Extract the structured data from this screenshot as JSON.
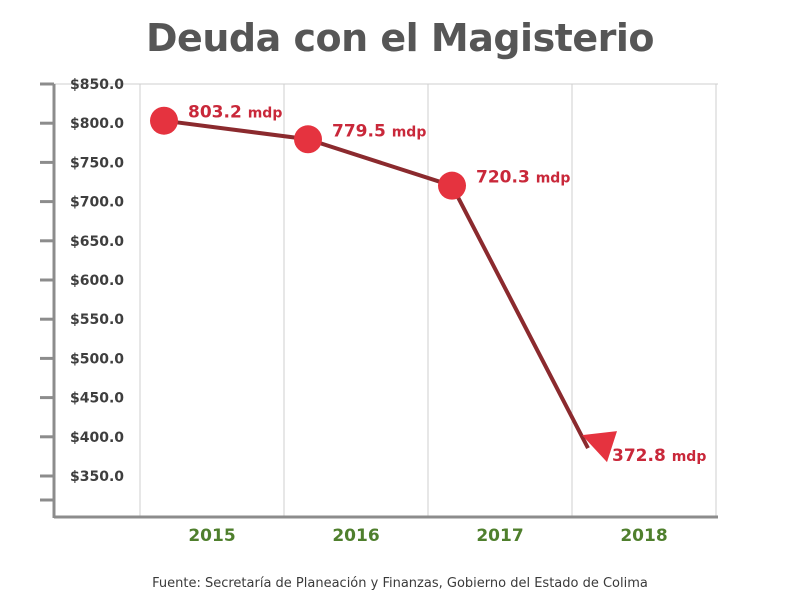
{
  "title": "Deuda con el Magisterio",
  "source": "Fuente: Secretaría de Planeación y Finanzas, Gobierno del Estado de Colima",
  "colors": {
    "line": "#8b2a2e",
    "marker": "#e5333f",
    "data_label": "#c9283a",
    "category_label": "#4f7f2d",
    "axis": "#8c8c8c",
    "grid": "#cfcfcf",
    "tick_text": "#3e3e3e"
  },
  "chart_data": {
    "type": "line",
    "categories": [
      "2015",
      "2016",
      "2017",
      "2018"
    ],
    "values": [
      803.2,
      779.5,
      720.3,
      372.8
    ],
    "data_labels": [
      {
        "value": "803.2",
        "unit": "mdp"
      },
      {
        "value": "779.5",
        "unit": "mdp"
      },
      {
        "value": "720.3",
        "unit": "mdp"
      },
      {
        "value": "372.8",
        "unit": "mdp"
      }
    ],
    "y_ticks": [
      850,
      800,
      750,
      700,
      650,
      600,
      550,
      500,
      450,
      400,
      350
    ],
    "y_tick_labels": [
      "$850.0",
      "$800.0",
      "$750.0",
      "$700.0",
      "$650.0",
      "$600.0",
      "$550.0",
      "$500.0",
      "$450.0",
      "$400.0",
      "$350.0"
    ],
    "ylim": [
      310,
      850
    ],
    "last_point_marker": "arrow-down",
    "grid": "vertical"
  }
}
